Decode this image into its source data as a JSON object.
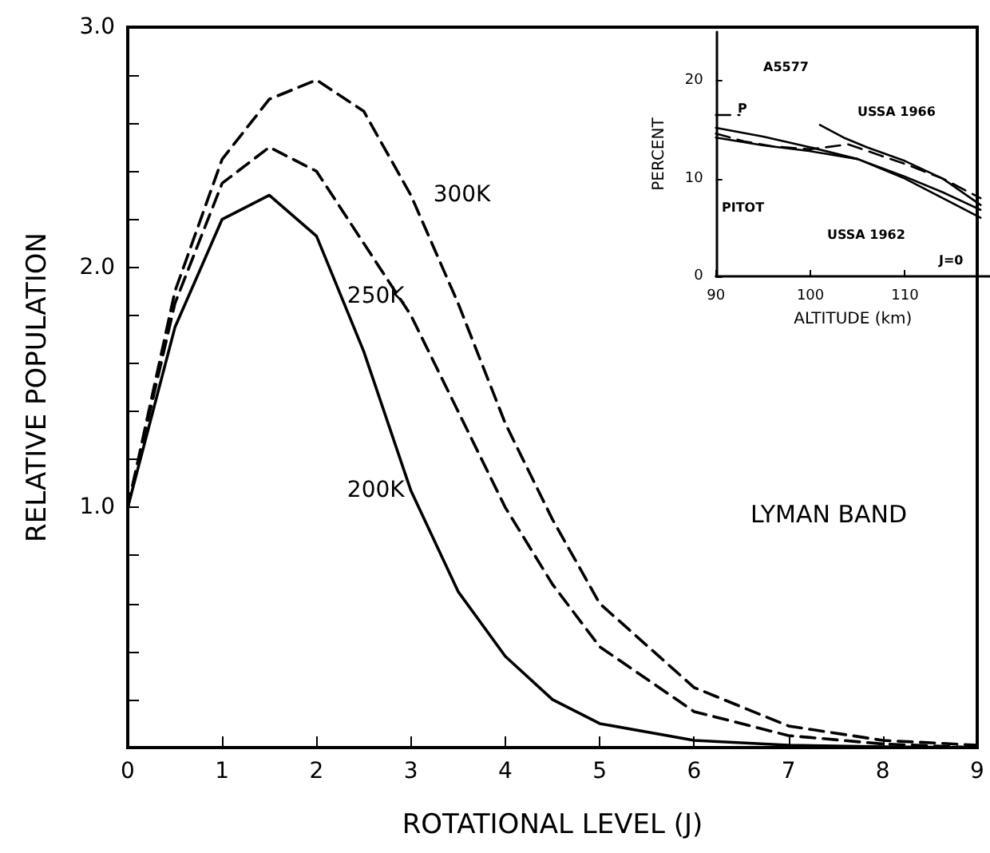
{
  "chart_data": [
    {
      "type": "line",
      "xlabel": "ROTATIONAL LEVEL (J)",
      "ylabel": "RELATIVE POPULATION",
      "xlim": [
        0,
        9
      ],
      "xticks": [
        0,
        1,
        2,
        3,
        4,
        5,
        6,
        7,
        8,
        9
      ],
      "ylim": [
        0,
        3
      ],
      "yticks": [
        {
          "value": 0,
          "label": null
        },
        {
          "value": 0.2,
          "label": null
        },
        {
          "value": 0.4,
          "label": null
        },
        {
          "value": 0.6,
          "label": null
        },
        {
          "value": 0.8,
          "label": null
        },
        {
          "value": 1,
          "label": "1.0"
        },
        {
          "value": 1.2,
          "label": null
        },
        {
          "value": 1.4,
          "label": null
        },
        {
          "value": 1.6,
          "label": null
        },
        {
          "value": 1.8,
          "label": null
        },
        {
          "value": 2,
          "label": "2.0"
        },
        {
          "value": 2.2,
          "label": null
        },
        {
          "value": 2.4,
          "label": null
        },
        {
          "value": 2.6,
          "label": null
        },
        {
          "value": 2.8,
          "label": null
        },
        {
          "value": 3,
          "label": "3.0"
        }
      ],
      "marker": "none",
      "grid": false,
      "x": [
        0,
        0.5,
        1,
        1.5,
        2,
        2.5,
        3,
        3.5,
        4,
        4.5,
        5,
        6,
        7,
        8,
        9
      ],
      "series": [
        {
          "name": "200K",
          "color": "#000000",
          "line_style": "solid",
          "values": [
            1.0,
            1.75,
            2.2,
            2.3,
            2.13,
            1.65,
            1.07,
            0.65,
            0.38,
            0.2,
            0.1,
            0.03,
            0.01,
            0.003,
            0
          ]
        },
        {
          "name": "250K",
          "color": "#000000",
          "line_style": "dashed",
          "values": [
            1.0,
            1.85,
            2.35,
            2.5,
            2.4,
            2.1,
            1.8,
            1.4,
            1.0,
            0.68,
            0.42,
            0.15,
            0.05,
            0.015,
            0
          ]
        },
        {
          "name": "300K",
          "color": "#000000",
          "line_style": "dashed",
          "values": [
            1.0,
            1.9,
            2.45,
            2.7,
            2.78,
            2.65,
            2.3,
            1.85,
            1.35,
            0.95,
            0.6,
            0.25,
            0.09,
            0.03,
            0.01
          ]
        }
      ],
      "annotations": [
        "LYMAN BAND"
      ]
    },
    {
      "type": "line",
      "xlabel": "ALTITUDE (km)",
      "ylabel": "PERCENT",
      "xlim": [
        90,
        119
      ],
      "xticks": [
        90,
        100,
        110
      ],
      "ylim": [
        0,
        25
      ],
      "yticks": [
        0,
        10,
        20
      ],
      "marker": "none",
      "grid": false,
      "series": [
        {
          "color": "#000000",
          "line_style": "solid",
          "x": [
            101,
            103.5,
            106,
            110,
            114,
            118
          ],
          "values": [
            15.5,
            14.2,
            13.2,
            11.8,
            10,
            7.3
          ]
        },
        {
          "color": "#000000",
          "line_style": "solid",
          "x": [
            90,
            95,
            100,
            105,
            110,
            114,
            118
          ],
          "values": [
            15.2,
            14.3,
            13.2,
            12,
            10.2,
            8.6,
            6.8
          ]
        },
        {
          "color": "#000000",
          "line_style": "solid",
          "x": [
            90,
            95,
            100,
            105,
            110,
            118
          ],
          "values": [
            14.2,
            13.4,
            12.8,
            12,
            10,
            6
          ]
        },
        {
          "color": "#000000",
          "line_style": "dashed",
          "x": [
            90,
            93,
            96,
            100,
            104,
            107,
            110,
            114,
            118
          ],
          "values": [
            14.6,
            13.8,
            13.3,
            13,
            13.5,
            12.5,
            11.5,
            10,
            8
          ]
        },
        {
          "color": "#000000",
          "line_style": "dashed",
          "x": [
            90,
            92.5
          ],
          "values": [
            16.5,
            16.5
          ]
        }
      ],
      "annotations": [
        "A5577",
        "P",
        "USSA 1966",
        "PITOT",
        "USSA 1962",
        "J=0"
      ]
    }
  ]
}
